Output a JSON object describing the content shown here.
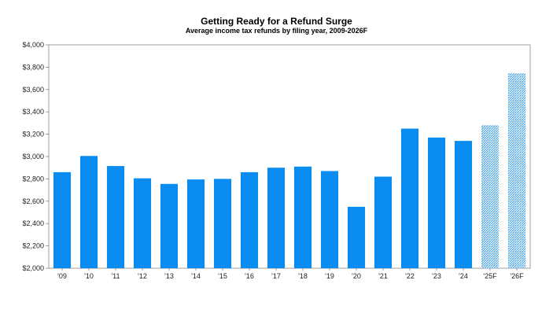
{
  "chart_data": {
    "type": "bar",
    "title": "Getting Ready for a Refund Surge",
    "subtitle": "Average income tax refunds by filing year, 2009-2026F",
    "xlabel": "",
    "ylabel": "",
    "categories": [
      "'09",
      "'10",
      "'11",
      "'12",
      "'13",
      "'14",
      "'15",
      "'16",
      "'17",
      "'18",
      "'19",
      "'20",
      "'21",
      "'22",
      "'23",
      "'24",
      "'25F",
      "'26F"
    ],
    "values": [
      2860,
      3005,
      2915,
      2805,
      2755,
      2795,
      2800,
      2860,
      2900,
      2910,
      2870,
      2550,
      2820,
      3250,
      3170,
      3140,
      3280,
      3745
    ],
    "forecast": [
      false,
      false,
      false,
      false,
      false,
      false,
      false,
      false,
      false,
      false,
      false,
      false,
      false,
      false,
      false,
      false,
      true,
      true
    ],
    "ylim": [
      2000,
      4000
    ],
    "yticks": [
      2000,
      2200,
      2400,
      2600,
      2800,
      3000,
      3200,
      3400,
      3600,
      3800,
      4000
    ],
    "ytick_labels": [
      "$2,000",
      "$2,200",
      "$2,400",
      "$2,600",
      "$2,800",
      "$3,000",
      "$3,200",
      "$3,400",
      "$3,600",
      "$3,800",
      "$4,000"
    ],
    "grid": false,
    "colors": {
      "actual": "#0a8cf0",
      "forecast": "#6cb8f2"
    }
  }
}
